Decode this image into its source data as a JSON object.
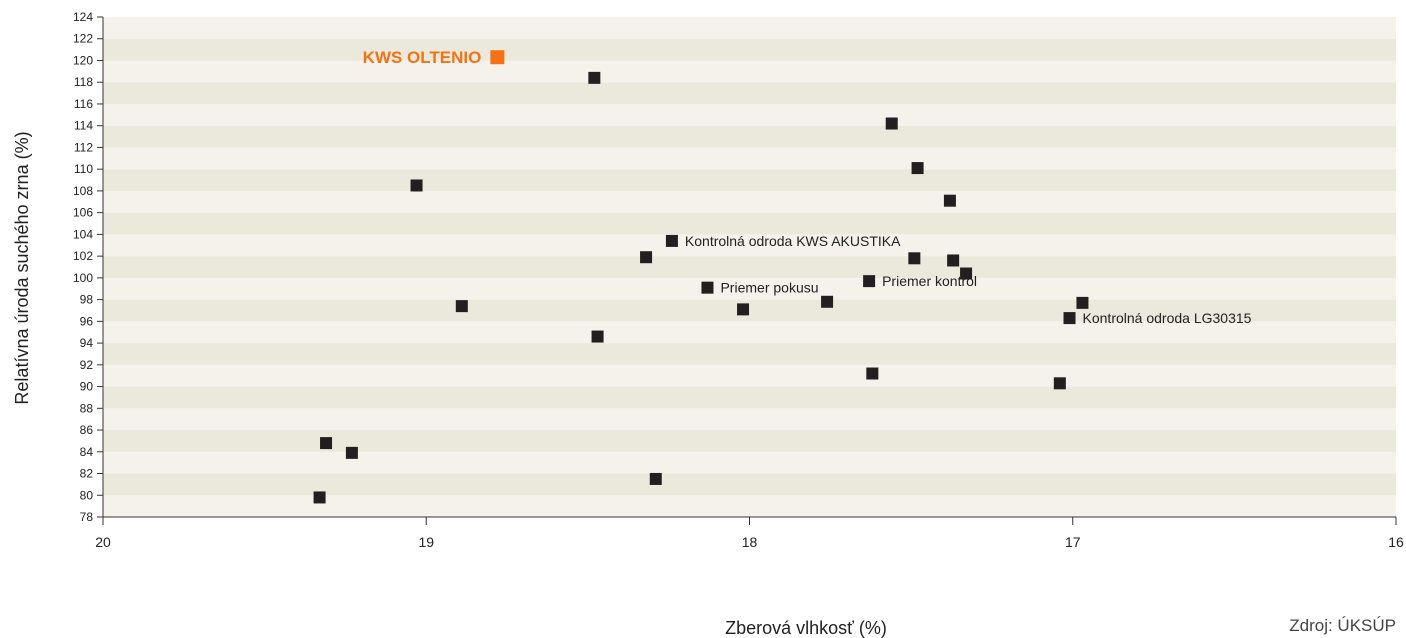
{
  "chart_data": {
    "type": "scatter",
    "xlabel": "Zberová vlhkosť (%)",
    "ylabel": "Relatívna úroda suchého zrna (%)",
    "xlim": [
      20,
      16
    ],
    "ylim": [
      78,
      124
    ],
    "x_reversed": true,
    "x_ticks": [
      20,
      19,
      18,
      17,
      16
    ],
    "y_ticks": [
      78,
      80,
      82,
      84,
      86,
      88,
      90,
      92,
      94,
      96,
      98,
      100,
      102,
      104,
      106,
      108,
      110,
      112,
      114,
      116,
      118,
      120,
      122,
      124
    ],
    "grid": "horizontal bands",
    "colors": {
      "point": "#231f20",
      "highlight": "#f47216",
      "band_dark": "#ebe8dc",
      "band_light": "#f4f2ea",
      "axis": "#333333"
    },
    "highlight": {
      "label": "KWS OLTENIO",
      "x": 18.78,
      "y": 120.3
    },
    "points": [
      {
        "x": 18.48,
        "y": 118.4
      },
      {
        "x": 17.56,
        "y": 114.2
      },
      {
        "x": 17.48,
        "y": 110.1
      },
      {
        "x": 19.03,
        "y": 108.5
      },
      {
        "x": 17.38,
        "y": 107.1
      },
      {
        "x": 18.24,
        "y": 103.4,
        "label": "Kontrolná odroda KWS AKUSTIKA"
      },
      {
        "x": 18.32,
        "y": 101.9
      },
      {
        "x": 17.49,
        "y": 101.8
      },
      {
        "x": 17.37,
        "y": 101.6
      },
      {
        "x": 17.33,
        "y": 100.4
      },
      {
        "x": 17.63,
        "y": 99.7,
        "label": "Priemer kontrol"
      },
      {
        "x": 18.13,
        "y": 99.1,
        "label": "Priemer pokusu"
      },
      {
        "x": 18.89,
        "y": 97.4
      },
      {
        "x": 17.76,
        "y": 97.8
      },
      {
        "x": 18.02,
        "y": 97.1
      },
      {
        "x": 16.97,
        "y": 97.7
      },
      {
        "x": 17.01,
        "y": 96.3,
        "label": "Kontrolná odroda LG30315"
      },
      {
        "x": 18.47,
        "y": 94.6
      },
      {
        "x": 17.62,
        "y": 91.2
      },
      {
        "x": 17.04,
        "y": 90.3
      },
      {
        "x": 19.31,
        "y": 84.8
      },
      {
        "x": 19.23,
        "y": 83.9
      },
      {
        "x": 18.29,
        "y": 81.5
      },
      {
        "x": 19.33,
        "y": 79.8
      }
    ]
  },
  "footer": {
    "source": "Zdroj: ÚKSÚP"
  }
}
